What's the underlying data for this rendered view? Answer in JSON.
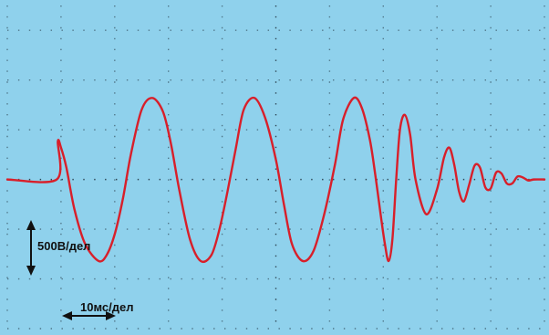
{
  "chart_data": {
    "type": "line",
    "title": "",
    "xlabel": "",
    "ylabel": "",
    "x_unit": "мс",
    "y_unit": "В",
    "xlim": [
      0,
      100
    ],
    "ylim": [
      -1500,
      1750
    ],
    "grid": true,
    "colors": {
      "background": "#8fd1ec",
      "grid": "#1b2b38",
      "trace": "#d81f2a",
      "arrows": "#111111"
    },
    "scale_indicators": {
      "vertical": {
        "label": "500В/дел",
        "value": 500,
        "unit": "В"
      },
      "horizontal": {
        "label": "10мс/дел",
        "value": 10,
        "unit": "мс"
      }
    },
    "series": [
      {
        "x": [
          0,
          9.2,
          9.4,
          10.0,
          11.0,
          12.5,
          14.5,
          17.0,
          18.5,
          20.0,
          21.5,
          23.0,
          25.0,
          27.0,
          29.0,
          30.5,
          32.0,
          34.0,
          36.0,
          38.0,
          39.5,
          41.0,
          42.5,
          44.0,
          46.0,
          48.0,
          50.0,
          51.5,
          53.0,
          55.0,
          57.0,
          59.0,
          61.0,
          62.5,
          64.5,
          66.0,
          67.5,
          68.5,
          69.5,
          70.3,
          71.0,
          71.7,
          72.4,
          73.1,
          74.0,
          75.0,
          76.0,
          78.0,
          80.0,
          81.3,
          82.3,
          83.2,
          84.1,
          85.0,
          86.0,
          87.0,
          88.0,
          89.0,
          90.0,
          91.0,
          92.0,
          93.0,
          94.0,
          95.0,
          96.0,
          97.0,
          98.0,
          100.0
        ],
        "y": [
          0,
          0,
          380,
          320,
          120,
          -300,
          -650,
          -820,
          -760,
          -550,
          -200,
          250,
          700,
          820,
          680,
          350,
          -100,
          -600,
          -820,
          -760,
          -500,
          -120,
          300,
          700,
          820,
          620,
          200,
          -250,
          -650,
          -820,
          -720,
          -350,
          150,
          600,
          820,
          720,
          400,
          50,
          -350,
          -650,
          -820,
          -600,
          0,
          500,
          650,
          450,
          0,
          -350,
          -100,
          220,
          320,
          150,
          -120,
          -220,
          -50,
          140,
          120,
          -80,
          -90,
          70,
          60,
          -40,
          -40,
          30,
          20,
          -10,
          0,
          0
        ]
      }
    ]
  }
}
